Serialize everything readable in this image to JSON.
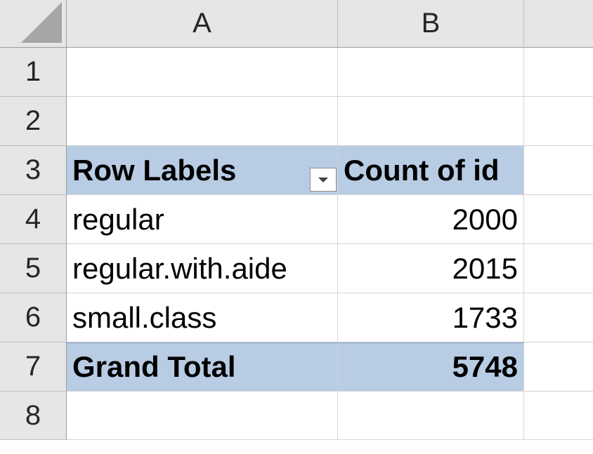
{
  "columns": [
    "A",
    "B"
  ],
  "rows": [
    "1",
    "2",
    "3",
    "4",
    "5",
    "6",
    "7",
    "8"
  ],
  "pivot": {
    "header": {
      "row_labels": "Row Labels",
      "count_label": "Count of id"
    },
    "items": [
      {
        "label": "regular",
        "count": "2000"
      },
      {
        "label": "regular.with.aide",
        "count": "2015"
      },
      {
        "label": "small.class",
        "count": "1733"
      }
    ],
    "total": {
      "label": "Grand Total",
      "count": "5748"
    }
  },
  "colors": {
    "pivot_band": "#b8cce4",
    "header_gray": "#e6e6e6"
  },
  "icons": {
    "filter": "filter-dropdown-icon",
    "select_all": "select-all-triangle-icon"
  }
}
